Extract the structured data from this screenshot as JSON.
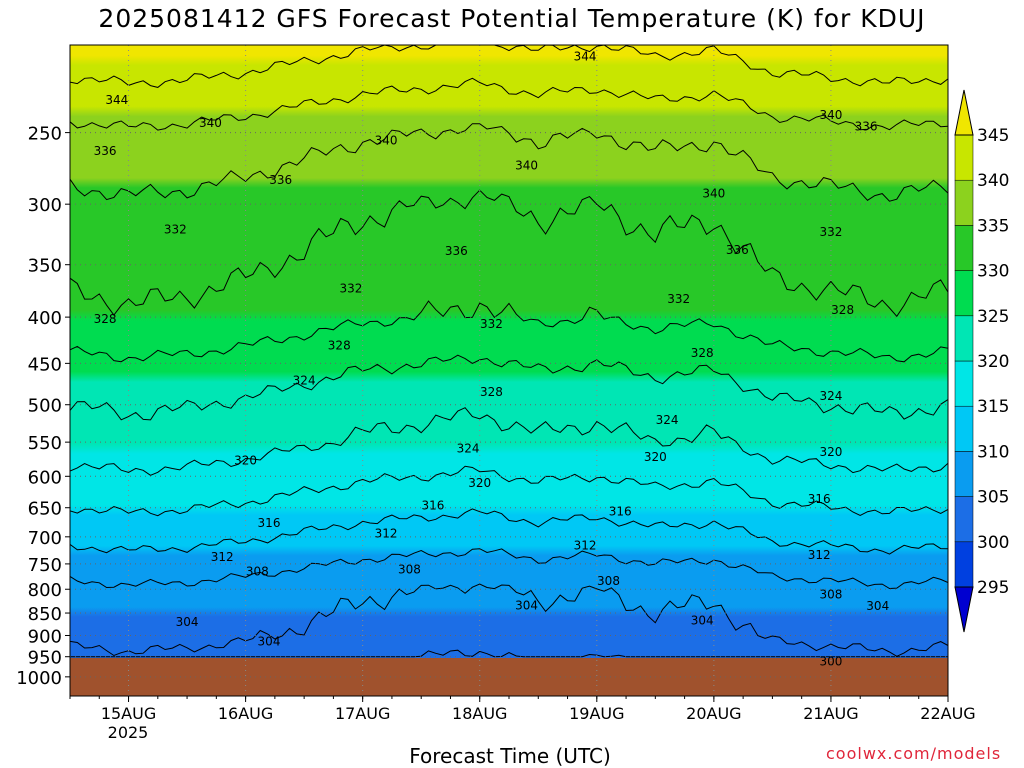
{
  "title": "2025081412 GFS Forecast Potential Temperature (K) for KDUJ",
  "credit": "coolwx.com/models",
  "chart_data": {
    "type": "heatmap",
    "title": "2025081412 GFS Forecast Potential Temperature (K) for KDUJ",
    "xlabel": "Forecast Time (UTC)",
    "ylabel": "",
    "x_ticks": [
      "15AUG",
      "16AUG",
      "17AUG",
      "18AUG",
      "19AUG",
      "20AUG",
      "21AUG",
      "22AUG"
    ],
    "x_year": "2025",
    "x_range_days": [
      14.5,
      22.0
    ],
    "y_ticks": [
      250,
      300,
      350,
      400,
      450,
      500,
      550,
      600,
      650,
      700,
      750,
      800,
      850,
      900,
      950,
      1000
    ],
    "y_range_hpa": [
      200,
      1050
    ],
    "y_scale": "log",
    "surface_pressure_hpa": 958,
    "colorbar_labels": [
      295,
      300,
      305,
      310,
      315,
      320,
      325,
      330,
      335,
      340,
      345
    ],
    "colorbar_colors": [
      "#0000d0",
      "#0040e0",
      "#1c6ee6",
      "#0a9cf0",
      "#00c8f5",
      "#00e6e6",
      "#00e6b4",
      "#00dc50",
      "#28c828",
      "#8cd21e",
      "#c8e600",
      "#f0e600"
    ],
    "theta_profile": [
      {
        "p": 200,
        "theta": 346
      },
      {
        "p": 250,
        "theta": 338
      },
      {
        "p": 300,
        "theta": 334
      },
      {
        "p": 350,
        "theta": 332
      },
      {
        "p": 400,
        "theta": 330
      },
      {
        "p": 450,
        "theta": 326
      },
      {
        "p": 500,
        "theta": 323
      },
      {
        "p": 550,
        "theta": 321
      },
      {
        "p": 600,
        "theta": 318
      },
      {
        "p": 650,
        "theta": 315
      },
      {
        "p": 700,
        "theta": 312
      },
      {
        "p": 750,
        "theta": 309
      },
      {
        "p": 800,
        "theta": 306
      },
      {
        "p": 850,
        "theta": 305
      },
      {
        "p": 900,
        "theta": 304
      },
      {
        "p": 950,
        "theta": 302
      }
    ],
    "time_anomaly": [
      {
        "day": 14.5,
        "dtheta": 1.0
      },
      {
        "day": 15.0,
        "dtheta": 1.5
      },
      {
        "day": 15.5,
        "dtheta": 1.2
      },
      {
        "day": 16.0,
        "dtheta": 0.5
      },
      {
        "day": 16.5,
        "dtheta": -0.5
      },
      {
        "day": 17.0,
        "dtheta": -1.5
      },
      {
        "day": 17.5,
        "dtheta": -2.0
      },
      {
        "day": 18.0,
        "dtheta": -2.5
      },
      {
        "day": 18.5,
        "dtheta": -1.5
      },
      {
        "day": 19.0,
        "dtheta": -2.0
      },
      {
        "day": 19.5,
        "dtheta": -1.0
      },
      {
        "day": 20.0,
        "dtheta": -1.5
      },
      {
        "day": 20.5,
        "dtheta": 0.5
      },
      {
        "day": 21.0,
        "dtheta": 1.0
      },
      {
        "day": 21.5,
        "dtheta": 1.5
      },
      {
        "day": 22.0,
        "dtheta": 1.0
      }
    ],
    "contour_levels": [
      300,
      304,
      308,
      312,
      316,
      320,
      324,
      328,
      332,
      336,
      340,
      344
    ],
    "contour_labels": [
      {
        "text": "344",
        "day": 14.9,
        "p": 230
      },
      {
        "text": "344",
        "day": 18.9,
        "p": 206
      },
      {
        "text": "340",
        "day": 15.7,
        "p": 244
      },
      {
        "text": "340",
        "day": 17.2,
        "p": 255
      },
      {
        "text": "340",
        "day": 18.4,
        "p": 272
      },
      {
        "text": "340",
        "day": 20.0,
        "p": 292
      },
      {
        "text": "340",
        "day": 21.0,
        "p": 239
      },
      {
        "text": "336",
        "day": 14.8,
        "p": 262
      },
      {
        "text": "336",
        "day": 16.3,
        "p": 282
      },
      {
        "text": "336",
        "day": 17.8,
        "p": 338
      },
      {
        "text": "336",
        "day": 20.2,
        "p": 337
      },
      {
        "text": "336",
        "day": 21.3,
        "p": 246
      },
      {
        "text": "332",
        "day": 15.4,
        "p": 320
      },
      {
        "text": "332",
        "day": 16.9,
        "p": 372
      },
      {
        "text": "332",
        "day": 18.1,
        "p": 407
      },
      {
        "text": "332",
        "day": 19.7,
        "p": 382
      },
      {
        "text": "332",
        "day": 21.0,
        "p": 322
      },
      {
        "text": "328",
        "day": 14.8,
        "p": 402
      },
      {
        "text": "328",
        "day": 16.8,
        "p": 430
      },
      {
        "text": "328",
        "day": 18.1,
        "p": 484
      },
      {
        "text": "328",
        "day": 19.9,
        "p": 438
      },
      {
        "text": "328",
        "day": 21.1,
        "p": 393
      },
      {
        "text": "324",
        "day": 16.5,
        "p": 470
      },
      {
        "text": "324",
        "day": 17.9,
        "p": 559
      },
      {
        "text": "324",
        "day": 19.6,
        "p": 520
      },
      {
        "text": "324",
        "day": 21.0,
        "p": 489
      },
      {
        "text": "320",
        "day": 16.0,
        "p": 576
      },
      {
        "text": "320",
        "day": 18.0,
        "p": 610
      },
      {
        "text": "320",
        "day": 19.5,
        "p": 571
      },
      {
        "text": "320",
        "day": 21.0,
        "p": 564
      },
      {
        "text": "316",
        "day": 16.2,
        "p": 676
      },
      {
        "text": "316",
        "day": 17.6,
        "p": 646
      },
      {
        "text": "316",
        "day": 19.2,
        "p": 656
      },
      {
        "text": "316",
        "day": 20.9,
        "p": 636
      },
      {
        "text": "312",
        "day": 15.8,
        "p": 737
      },
      {
        "text": "312",
        "day": 17.2,
        "p": 694
      },
      {
        "text": "312",
        "day": 18.9,
        "p": 716
      },
      {
        "text": "312",
        "day": 20.9,
        "p": 733
      },
      {
        "text": "308",
        "day": 16.1,
        "p": 765
      },
      {
        "text": "308",
        "day": 17.4,
        "p": 761
      },
      {
        "text": "308",
        "day": 19.1,
        "p": 783
      },
      {
        "text": "308",
        "day": 21.0,
        "p": 811
      },
      {
        "text": "304",
        "day": 15.5,
        "p": 870
      },
      {
        "text": "304",
        "day": 16.2,
        "p": 914
      },
      {
        "text": "304",
        "day": 18.4,
        "p": 834
      },
      {
        "text": "304",
        "day": 19.9,
        "p": 866
      },
      {
        "text": "304",
        "day": 21.4,
        "p": 835
      },
      {
        "text": "300",
        "day": 21.0,
        "p": 962
      }
    ]
  }
}
